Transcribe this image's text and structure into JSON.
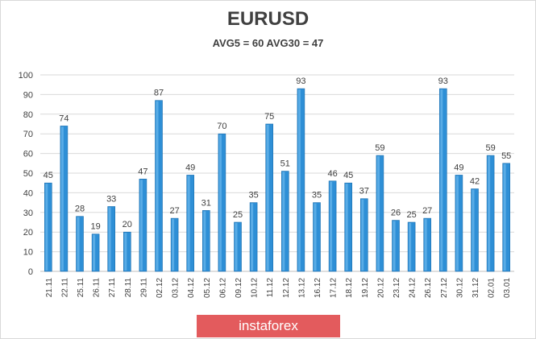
{
  "chart_data": {
    "type": "bar",
    "title": "EURUSD",
    "subtitle": "AVG5 = 60 AVG30 = 47",
    "categories": [
      "21.11",
      "22.11",
      "25.11",
      "26.11",
      "27.11",
      "28.11",
      "29.11",
      "02.12",
      "03.12",
      "04.12",
      "05.12",
      "06.12",
      "09.12",
      "10.12",
      "11.12",
      "12.12",
      "13.12",
      "16.12",
      "17.12",
      "18.12",
      "19.12",
      "20.12",
      "23.12",
      "24.12",
      "26.12",
      "27.12",
      "30.12",
      "31.12",
      "02.01",
      "03.01"
    ],
    "values": [
      45,
      74,
      28,
      19,
      33,
      20,
      47,
      87,
      27,
      49,
      31,
      70,
      25,
      35,
      75,
      51,
      93,
      35,
      46,
      45,
      37,
      59,
      26,
      25,
      27,
      93,
      49,
      42,
      59,
      55
    ],
    "ylim": [
      0,
      100
    ],
    "yticks": [
      0,
      10,
      20,
      30,
      40,
      50,
      60,
      70,
      80,
      90,
      100
    ],
    "grid": true,
    "bar_color": "#2e8fd6",
    "data_labels": true
  },
  "watermark": {
    "text": "instaforex",
    "color": "#e35b5d"
  }
}
